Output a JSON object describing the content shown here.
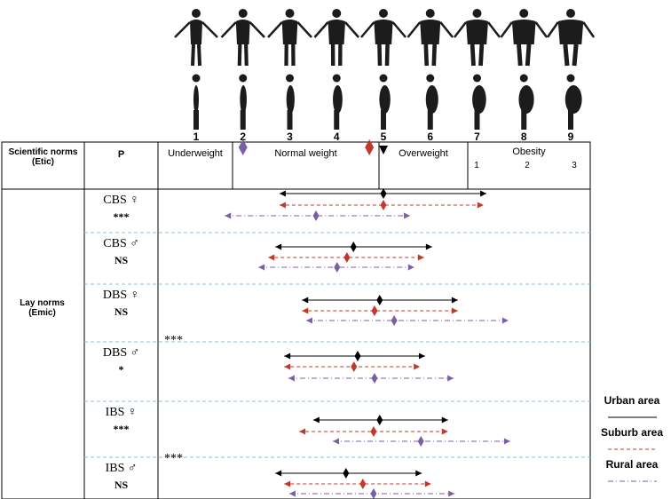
{
  "header": {
    "scientific_norms": "Scientific norms (Etic)",
    "p": "P",
    "categories": [
      "Underweight",
      "Normal weight",
      "Overweight",
      "Obesity"
    ],
    "obesity_levels": [
      "1",
      "2",
      "3"
    ]
  },
  "scale": {
    "ticks": [
      1,
      2,
      3,
      4,
      5,
      6,
      7,
      8,
      9
    ]
  },
  "markers": [
    {
      "color": "#7b5ea7",
      "value": 2
    },
    {
      "color": "#c0392b",
      "value": 4.7
    },
    {
      "color": "#000000",
      "value": 5
    }
  ],
  "lay_norms": "Lay norms (Emic)",
  "rows": [
    {
      "label": "CBS ♀",
      "significance": "***",
      "groups": [
        {
          "min": 2.78,
          "mean": 5.0,
          "max": 7.2
        },
        {
          "min": 2.78,
          "mean": 5.0,
          "max": 7.14
        },
        {
          "min": 1.61,
          "mean": 3.56,
          "max": 5.57
        }
      ]
    },
    {
      "label": "CBS ♂",
      "significance": "NS",
      "groups": [
        {
          "min": 2.69,
          "mean": 4.36,
          "max": 6.04
        },
        {
          "min": 2.54,
          "mean": 4.22,
          "max": 5.87
        },
        {
          "min": 2.33,
          "mean": 4.01,
          "max": 5.66
        }
      ]
    },
    {
      "label": "DBS ♀",
      "significance": "NS",
      "groups": [
        {
          "min": 3.26,
          "mean": 4.92,
          "max": 6.59
        },
        {
          "min": 3.26,
          "mean": 4.81,
          "max": 6.59
        },
        {
          "min": 3.35,
          "mean": 5.23,
          "max": 7.67
        }
      ]
    },
    {
      "label": "DBS ♂",
      "significance": "*",
      "groups": [
        {
          "min": 2.88,
          "mean": 4.45,
          "max": 5.89
        },
        {
          "min": 2.88,
          "mean": 4.37,
          "max": 5.78
        },
        {
          "min": 2.97,
          "mean": 4.81,
          "max": 6.5
        }
      ]
    },
    {
      "label": "IBS ♀",
      "significance": "***",
      "groups": [
        {
          "min": 3.5,
          "mean": 4.92,
          "max": 6.38
        },
        {
          "min": 3.2,
          "mean": 4.79,
          "max": 6.38
        },
        {
          "min": 3.92,
          "mean": 5.8,
          "max": 7.71
        }
      ]
    },
    {
      "label": "IBS ♂",
      "significance": "NS",
      "groups": [
        {
          "min": 2.69,
          "mean": 4.2,
          "max": 5.82
        },
        {
          "min": 2.88,
          "mean": 4.56,
          "max": 6.02
        },
        {
          "min": 2.99,
          "mean": 4.79,
          "max": 6.52
        }
      ]
    }
  ],
  "brackets": [
    {
      "label": "***"
    },
    {
      "label": "***"
    }
  ],
  "legend": [
    {
      "name": "Urban area",
      "color": "#000000",
      "style": "solid"
    },
    {
      "name": "Suburb area",
      "color": "#c0392b",
      "style": "dashed"
    },
    {
      "name": "Rural area",
      "color": "#7b5ea7",
      "style": "dashdot"
    }
  ]
}
